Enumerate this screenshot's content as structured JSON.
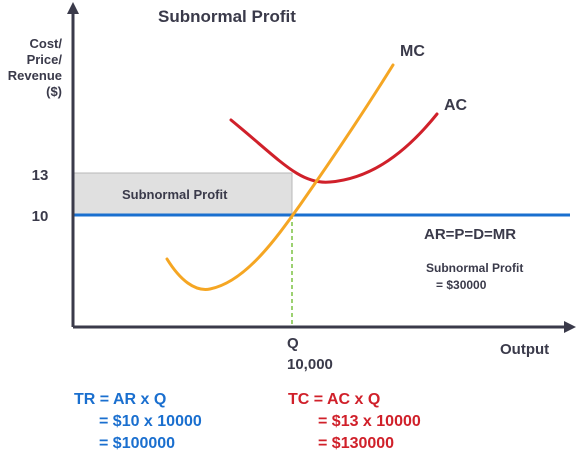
{
  "title": "Subnormal Profit",
  "y_axis_label": [
    "Cost/",
    "Price/",
    "Revenue",
    "($)"
  ],
  "x_axis_label": "Output",
  "tick_labels": {
    "y13": "13",
    "y10": "10"
  },
  "q_label": "Q",
  "q_value": "10,000",
  "curves": {
    "mc": "MC",
    "ac": "AC",
    "demand": "AR=P=D=MR"
  },
  "shaded_region_label": "Subnormal Profit",
  "profit_note": [
    "Subnormal Profit",
    "= $30000"
  ],
  "formulas": {
    "tr": [
      "TR = AR x Q",
      "= $10 x 10000",
      "= $100000"
    ],
    "tc": [
      "TC = AC x Q",
      "= $13 x 10000",
      "= $130000"
    ]
  },
  "colors": {
    "mc": "#f5a623",
    "ac": "#d0202a",
    "demand": "#1a6fcf",
    "tr_text": "#1a6fcf",
    "tc_text": "#d0202a",
    "axis": "#3a3a4a",
    "text": "#3a3a4a",
    "shade": "#e0e0e0",
    "guide": "#7cc242"
  }
}
